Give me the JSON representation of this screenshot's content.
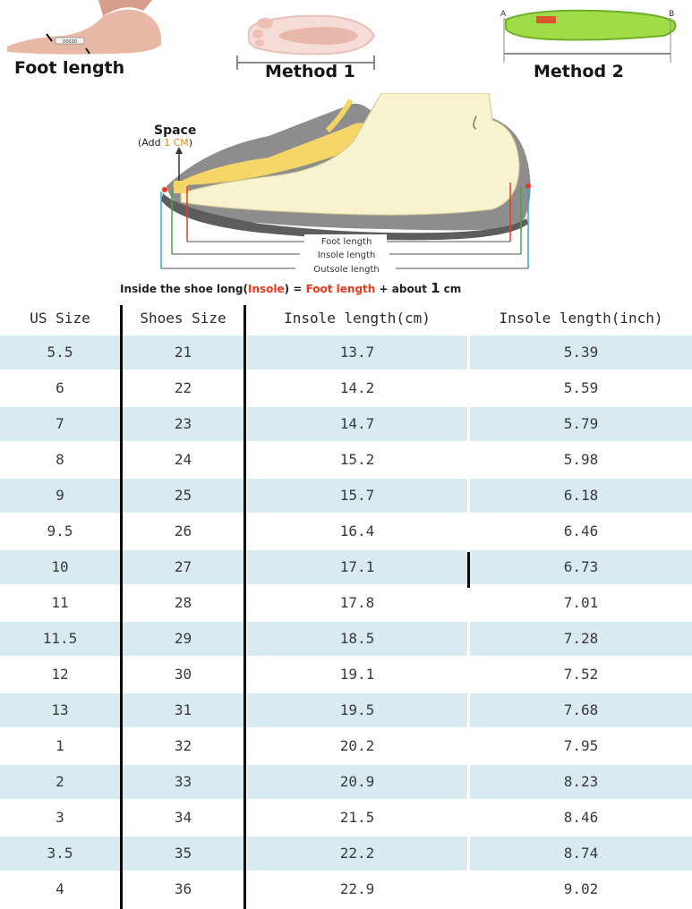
{
  "illustration": {
    "foot_length_label": "Foot length",
    "method1_label": "Method 1",
    "method2_label": "Method 2",
    "insole_point_a": "A",
    "insole_point_b": "B",
    "space_label": "Space",
    "add_prefix": "(Add ",
    "add_value": "1 CM",
    "add_suffix": ")",
    "foot_length_dim": "Foot length",
    "insole_length_dim": "Insole length",
    "outsole_length_dim": "Outsole length",
    "caption_part1": "Inside the shoe long(",
    "caption_insole": "Insole",
    "caption_part2": ") = ",
    "caption_foot": "Foot length",
    "caption_part3": " + about ",
    "caption_one": "1",
    "caption_part4": "cm"
  },
  "table": {
    "headers": [
      "US Size",
      "Shoes Size",
      "Insole length(cm)",
      "Insole length(inch)"
    ],
    "rows": [
      [
        "5.5",
        "21",
        "13.7",
        "5.39"
      ],
      [
        "6",
        "22",
        "14.2",
        "5.59"
      ],
      [
        "7",
        "23",
        "14.7",
        "5.79"
      ],
      [
        "8",
        "24",
        "15.2",
        "5.98"
      ],
      [
        "9",
        "25",
        "15.7",
        "6.18"
      ],
      [
        "9.5",
        "26",
        "16.4",
        "6.46"
      ],
      [
        "10",
        "27",
        "17.1",
        "6.73"
      ],
      [
        "11",
        "28",
        "17.8",
        "7.01"
      ],
      [
        "11.5",
        "29",
        "18.5",
        "7.28"
      ],
      [
        "12",
        "30",
        "19.1",
        "7.52"
      ],
      [
        "13",
        "31",
        "19.5",
        "7.68"
      ],
      [
        "1",
        "32",
        "20.2",
        "7.95"
      ],
      [
        "2",
        "33",
        "20.9",
        "8.23"
      ],
      [
        "3",
        "34",
        "21.5",
        "8.46"
      ],
      [
        "3.5",
        "35",
        "22.2",
        "8.74"
      ],
      [
        "4",
        "36",
        "22.9",
        "9.02"
      ]
    ]
  },
  "colors": {
    "row_shade": "#daeaf1",
    "accent_red": "#e63b1f",
    "insole_green": "#8fd13a",
    "foot_pink": "#f0c8bd"
  }
}
